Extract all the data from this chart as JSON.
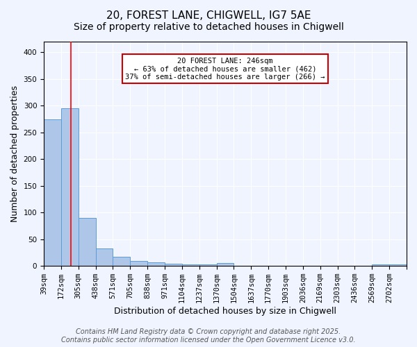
{
  "title1": "20, FOREST LANE, CHIGWELL, IG7 5AE",
  "title2": "Size of property relative to detached houses in Chigwell",
  "xlabel": "Distribution of detached houses by size in Chigwell",
  "ylabel": "Number of detached properties",
  "bin_labels": [
    "39sqm",
    "172sqm",
    "305sqm",
    "438sqm",
    "571sqm",
    "705sqm",
    "838sqm",
    "971sqm",
    "1104sqm",
    "1237sqm",
    "1370sqm",
    "1504sqm",
    "1637sqm",
    "1770sqm",
    "1903sqm",
    "2036sqm",
    "2169sqm",
    "2303sqm",
    "2436sqm",
    "2569sqm",
    "2702sqm"
  ],
  "bar_heights": [
    275,
    295,
    90,
    32,
    17,
    9,
    7,
    4,
    3,
    2,
    5,
    0,
    0,
    0,
    0,
    0,
    0,
    0,
    0,
    2,
    3
  ],
  "bar_color": "#aec6e8",
  "bar_edge_color": "#5b9bd5",
  "red_line_x": 1.55,
  "annotation_text": "20 FOREST LANE: 246sqm\n← 63% of detached houses are smaller (462)\n37% of semi-detached houses are larger (266) →",
  "annotation_box_color": "#ffffff",
  "annotation_border_color": "#cc0000",
  "ylim": [
    0,
    420
  ],
  "yticks": [
    0,
    50,
    100,
    150,
    200,
    250,
    300,
    350,
    400
  ],
  "background_color": "#f0f4ff",
  "footer1": "Contains HM Land Registry data © Crown copyright and database right 2025.",
  "footer2": "Contains public sector information licensed under the Open Government Licence v3.0.",
  "title_fontsize": 11,
  "subtitle_fontsize": 10,
  "axis_label_fontsize": 9,
  "tick_fontsize": 7.5,
  "footer_fontsize": 7
}
